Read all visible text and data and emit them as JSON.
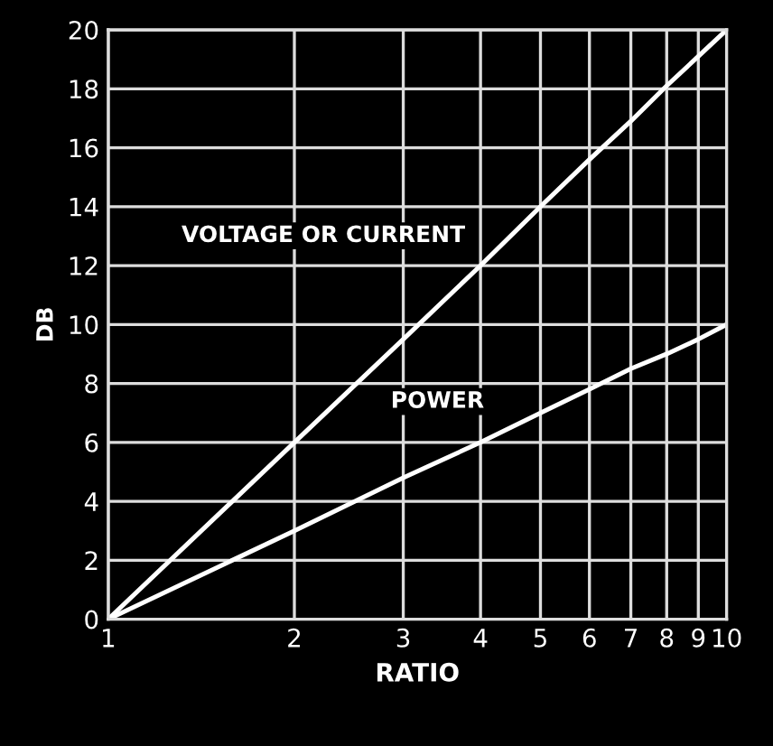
{
  "chart_data": {
    "type": "line",
    "xlabel": "RATIO",
    "ylabel": "DB",
    "log": "x",
    "x": [
      1,
      2,
      3,
      4,
      5,
      6,
      7,
      8,
      9,
      10
    ],
    "series": [
      {
        "name": "VOLTAGE OR CURRENT",
        "color": "#ffffff",
        "values": [
          0,
          6,
          9.5,
          12,
          14,
          15.6,
          16.9,
          18.1,
          19.1,
          20
        ]
      },
      {
        "name": "POWER",
        "color": "#ffffff",
        "values": [
          0,
          3,
          4.8,
          6,
          7,
          7.8,
          8.5,
          9,
          9.5,
          10
        ]
      }
    ],
    "xlim": [
      1,
      10
    ],
    "xticks": [
      1,
      2,
      3,
      4,
      5,
      6,
      7,
      8,
      9,
      10
    ],
    "ylim": [
      0,
      20
    ],
    "yticks": [
      0,
      2,
      4,
      6,
      8,
      10,
      12,
      14,
      16,
      18,
      20
    ],
    "grid": true,
    "marker": "none",
    "line_style": "solid"
  }
}
